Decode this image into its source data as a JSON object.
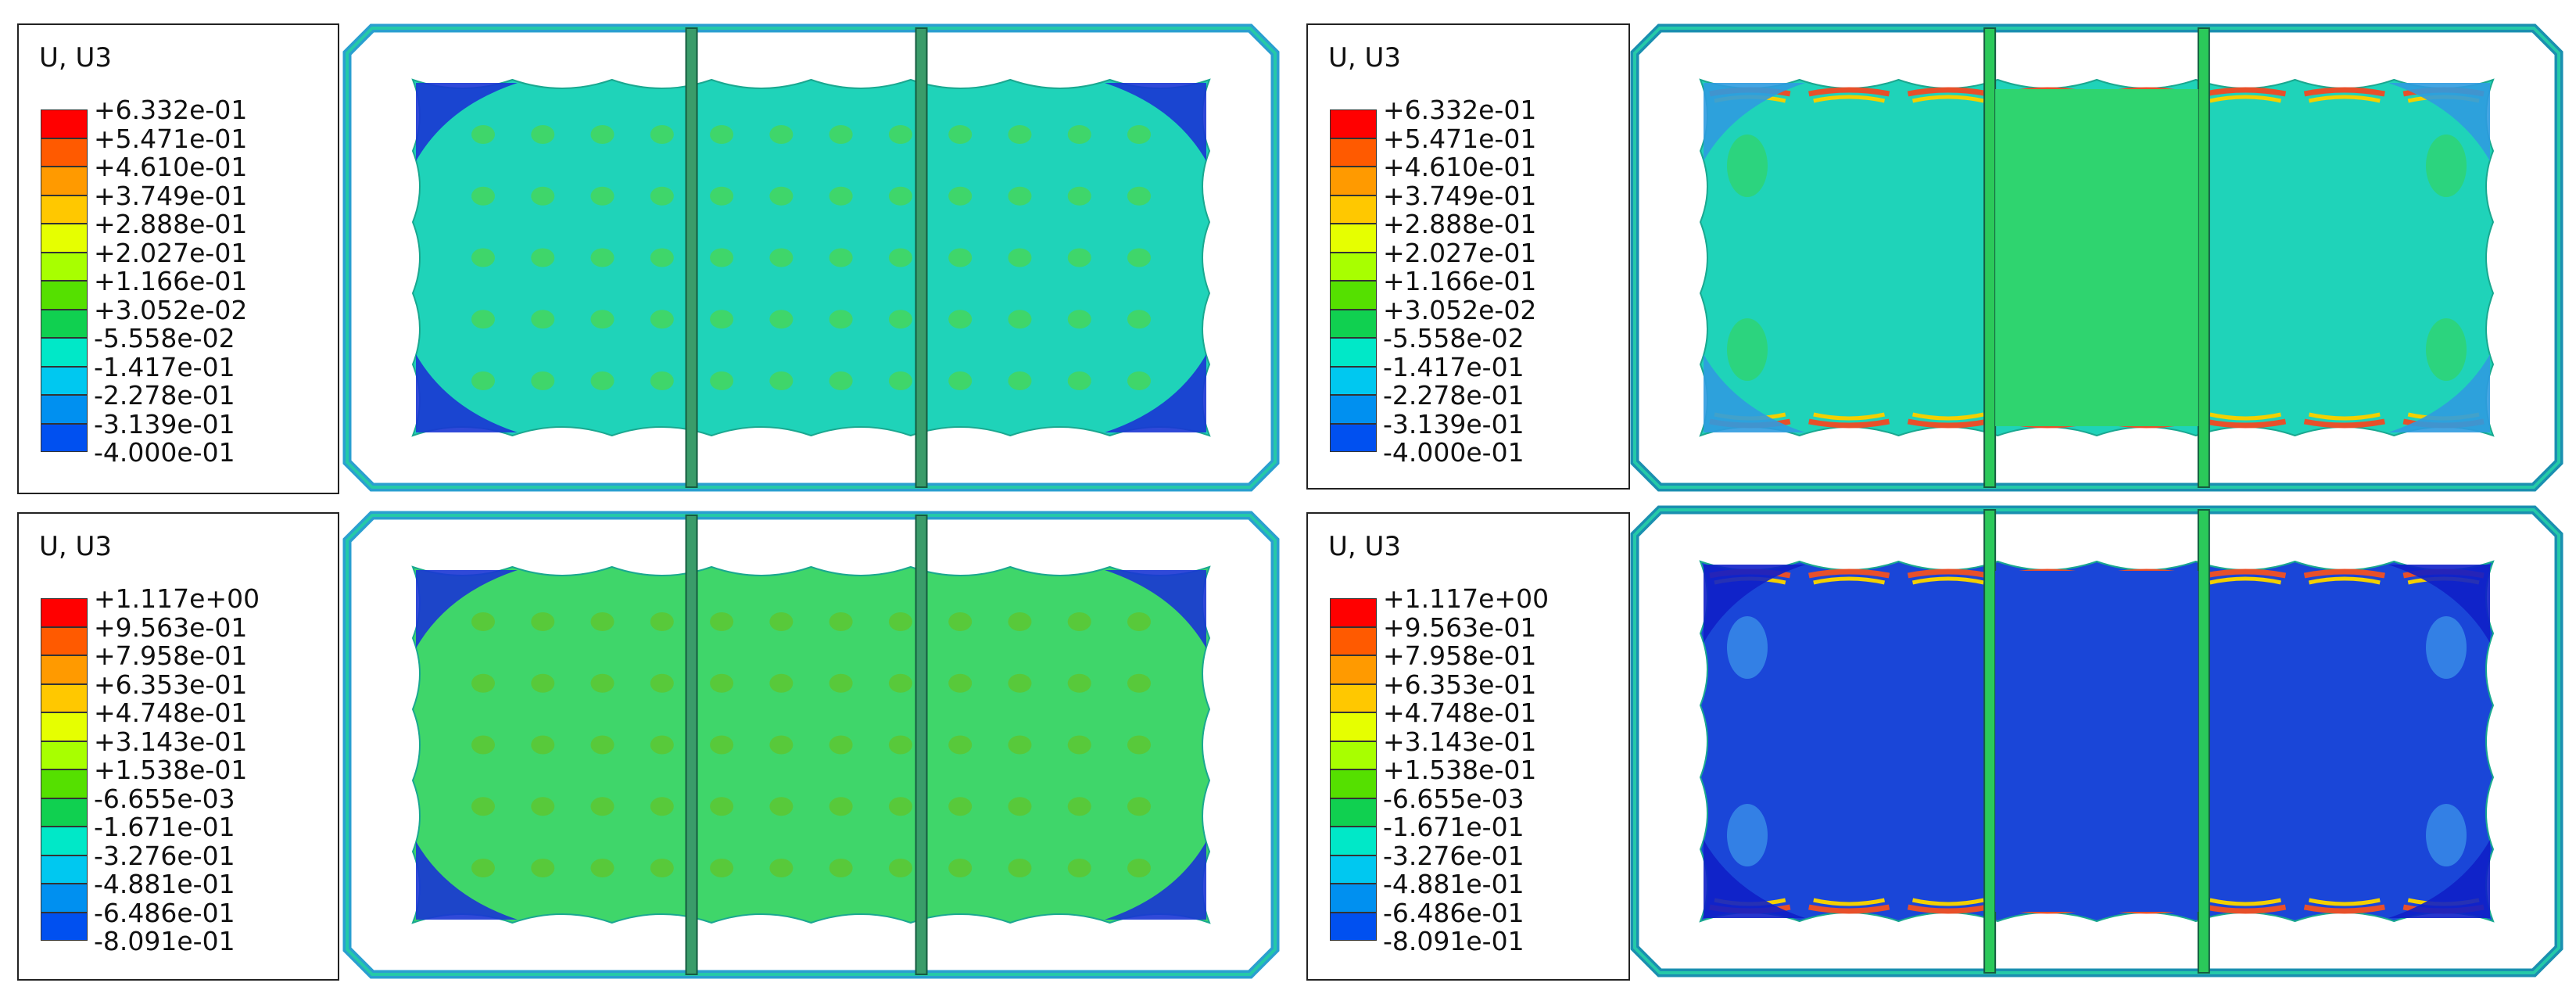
{
  "figure": {
    "panels": [
      {
        "id": "top-left",
        "legend": {
          "title": "U, U3",
          "levels": [
            "+6.332e-01",
            "+5.471e-01",
            "+4.610e-01",
            "+3.749e-01",
            "+2.888e-01",
            "+2.027e-01",
            "+1.166e-01",
            "+3.052e-02",
            "-5.558e-02",
            "-1.417e-01",
            "-2.278e-01",
            "-3.139e-01",
            "-4.000e-01"
          ]
        },
        "model": {
          "center_fill": "#1fd3b9",
          "center_rail": false,
          "blobs": "#3fd66a",
          "corners": "#1a35d4",
          "edge_band": "#2f9be0"
        }
      },
      {
        "id": "top-right",
        "legend": {
          "title": "U, U3",
          "levels": [
            "+6.332e-01",
            "+5.471e-01",
            "+4.610e-01",
            "+3.749e-01",
            "+2.888e-01",
            "+2.027e-01",
            "+1.166e-01",
            "+3.052e-02",
            "-5.558e-02",
            "-1.417e-01",
            "-2.278e-01",
            "-3.139e-01",
            "-4.000e-01"
          ]
        },
        "model": {
          "center_fill": "#1fd3b9",
          "center_rail": true,
          "blobs": "#2fd46f",
          "corners": "#2f9be0",
          "edge_band": "#e8502a"
        }
      },
      {
        "id": "bottom-left",
        "legend": {
          "title": "U, U3",
          "levels": [
            "+1.117e+00",
            "+9.563e-01",
            "+7.958e-01",
            "+6.353e-01",
            "+4.748e-01",
            "+3.143e-01",
            "+1.538e-01",
            "-6.655e-03",
            "-1.671e-01",
            "-3.276e-01",
            "-4.881e-01",
            "-6.486e-01",
            "-8.091e-01"
          ]
        },
        "model": {
          "center_fill": "#3fd66a",
          "center_rail": false,
          "blobs": "#58c93a",
          "corners": "#1a35d4",
          "edge_band": "#2f9be0"
        }
      },
      {
        "id": "bottom-right",
        "legend": {
          "title": "U, U3",
          "levels": [
            "+1.117e+00",
            "+9.563e-01",
            "+7.958e-01",
            "+6.353e-01",
            "+4.748e-01",
            "+3.143e-01",
            "+1.538e-01",
            "-6.655e-03",
            "-1.671e-01",
            "-3.276e-01",
            "-4.881e-01",
            "-6.486e-01",
            "-8.091e-01"
          ]
        },
        "model": {
          "center_fill": "#1a46d8",
          "center_rail": true,
          "blobs": "#3a8fe8",
          "corners": "#0f1fc8",
          "edge_band": "#e8502a"
        }
      }
    ],
    "colormap": [
      "#ff0000",
      "#ff5a00",
      "#ff9a00",
      "#ffc800",
      "#e6ff00",
      "#a8ff00",
      "#55e000",
      "#10d050",
      "#00e8c8",
      "#00c8f0",
      "#0090f0",
      "#0050f0",
      "#0010ff"
    ]
  }
}
